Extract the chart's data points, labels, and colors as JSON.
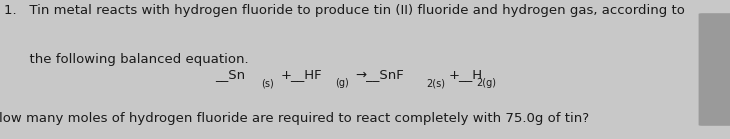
{
  "bg_color": "#c8c8c8",
  "text_color": "#1a1a1a",
  "line1": "1.   Tin metal reacts with hydrogen fluoride to produce tin (II) fluoride and hydrogen gas, according to",
  "line2": "      the following balanced equation.",
  "line3": "low many moles of hydrogen fluoride are required to react completely with 75.0g of tin?",
  "eq_main": [
    [
      0.295,
      "__Sn"
    ],
    [
      0.385,
      "+__HF"
    ],
    [
      0.487,
      "→__SnF"
    ],
    [
      0.614,
      "+__H"
    ]
  ],
  "eq_sub": [
    [
      0.358,
      "(s)"
    ],
    [
      0.459,
      "(g)"
    ],
    [
      0.584,
      "2(s)"
    ],
    [
      0.652,
      "2(g)"
    ]
  ],
  "font_size_main": 9.5,
  "font_size_sub": 7.0,
  "tab_color": "#9a9a9a",
  "fig_width": 7.3,
  "fig_height": 1.39,
  "dpi": 100
}
